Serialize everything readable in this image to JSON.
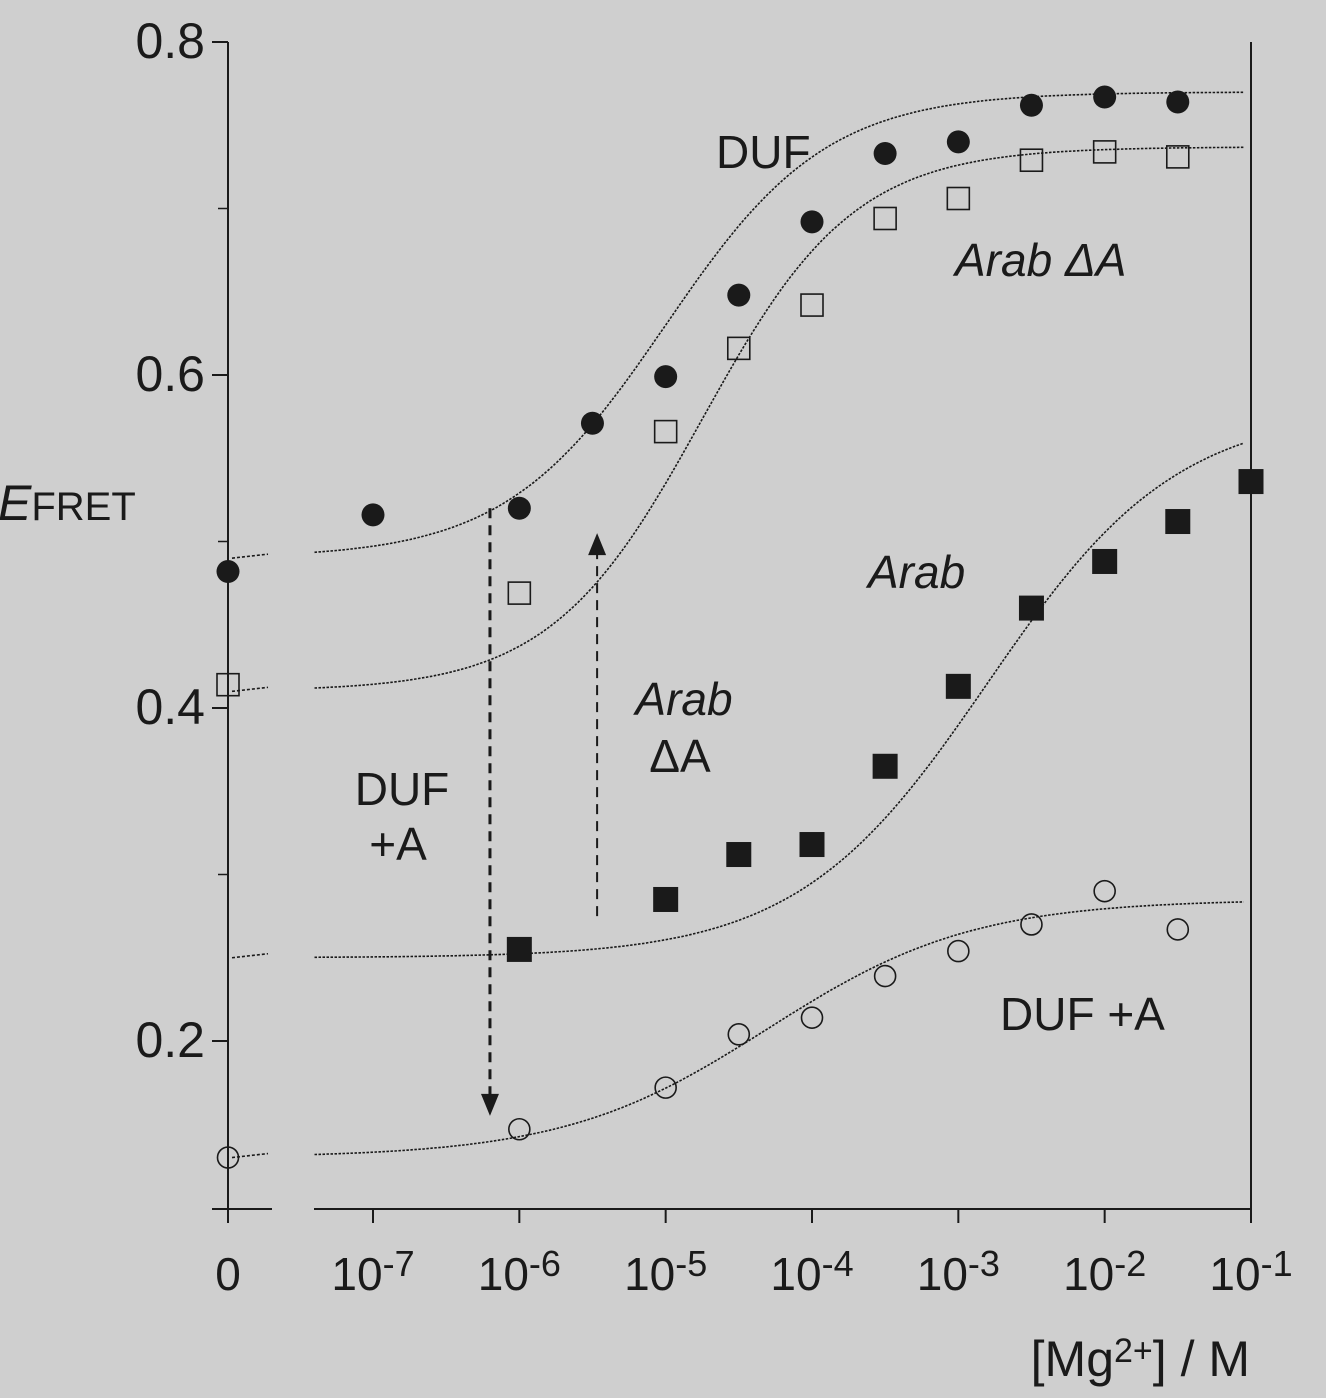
{
  "chart_data": {
    "type": "scatter",
    "xlabel": "[Mg2+] / M",
    "ylabel": "EFRET",
    "x_scale": "log",
    "y_ticks": [
      "0.2",
      "0.4",
      "0.6",
      "0.8"
    ],
    "y_tick_values": [
      0.2,
      0.4,
      0.6,
      0.8
    ],
    "x_ticks": [
      {
        "label": "0",
        "value": 0
      },
      {
        "label": "10-7",
        "value": 1e-07
      },
      {
        "label": "10-6",
        "value": 1e-06
      },
      {
        "label": "10-5",
        "value": 1e-05
      },
      {
        "label": "10-4",
        "value": 0.0001
      },
      {
        "label": "10-3",
        "value": 0.001
      },
      {
        "label": "10-2",
        "value": 0.01
      },
      {
        "label": "10-1",
        "value": 0.1
      }
    ],
    "ylim": [
      0.1,
      0.8
    ],
    "grid": false,
    "series": [
      {
        "name": "DUF",
        "marker": "filled-circle",
        "x": [
          0,
          1e-07,
          1e-06,
          3.16e-06,
          1e-05,
          3.16e-05,
          0.0001,
          0.000316,
          0.001,
          0.00316,
          0.01,
          0.0316
        ],
        "y": [
          0.482,
          0.516,
          0.52,
          0.571,
          0.599,
          0.648,
          0.692,
          0.733,
          0.74,
          0.762,
          0.767,
          0.764
        ],
        "fit": {
          "baseline": 0.49,
          "plateau": 0.77,
          "mid_log": -5.0,
          "width": 0.55
        }
      },
      {
        "name": "Arab ΔA",
        "marker": "open-square",
        "x": [
          0,
          1e-06,
          1e-05,
          3.16e-05,
          0.0001,
          0.000316,
          0.001,
          0.00316,
          0.01,
          0.0316
        ],
        "y": [
          0.414,
          0.469,
          0.566,
          0.616,
          0.642,
          0.694,
          0.706,
          0.729,
          0.734,
          0.731
        ],
        "fit": {
          "baseline": 0.41,
          "plateau": 0.737,
          "mid_log": -4.75,
          "width": 0.52
        }
      },
      {
        "name": "Arab",
        "marker": "filled-square",
        "x": [
          1e-06,
          1e-05,
          3.16e-05,
          0.0001,
          0.000316,
          0.001,
          0.00316,
          0.01,
          0.0316,
          0.1
        ],
        "y": [
          0.255,
          0.285,
          0.312,
          0.318,
          0.365,
          0.413,
          0.46,
          0.488,
          0.512,
          0.536
        ],
        "fit": {
          "baseline": 0.25,
          "plateau": 0.58,
          "mid_log": -2.8,
          "width": 0.65
        }
      },
      {
        "name": "DUF +A",
        "marker": "open-circle",
        "x": [
          0,
          1e-06,
          1e-05,
          3.16e-05,
          0.0001,
          0.000316,
          0.001,
          0.00316,
          0.01,
          0.0316
        ],
        "y": [
          0.13,
          0.147,
          0.172,
          0.204,
          0.214,
          0.239,
          0.254,
          0.27,
          0.29,
          0.267
        ],
        "fit": {
          "baseline": 0.13,
          "plateau": 0.285,
          "mid_log": -4.3,
          "width": 0.7
        }
      }
    ],
    "annotations": [
      {
        "text": "DUF",
        "italic": false
      },
      {
        "text": "Arab ΔA",
        "italic": true
      },
      {
        "text": "Arab",
        "italic": true
      },
      {
        "text": "DUF +A",
        "italic": false
      }
    ],
    "arrows": [
      {
        "label_lines": [
          "DUF",
          "+A"
        ],
        "x": 6.3e-07,
        "from_y": 0.52,
        "to_y": 0.155
      },
      {
        "label_lines": [
          "Arab",
          "ΔA"
        ],
        "x": 3.4e-06,
        "from_y": 0.275,
        "to_y": 0.505
      }
    ]
  }
}
